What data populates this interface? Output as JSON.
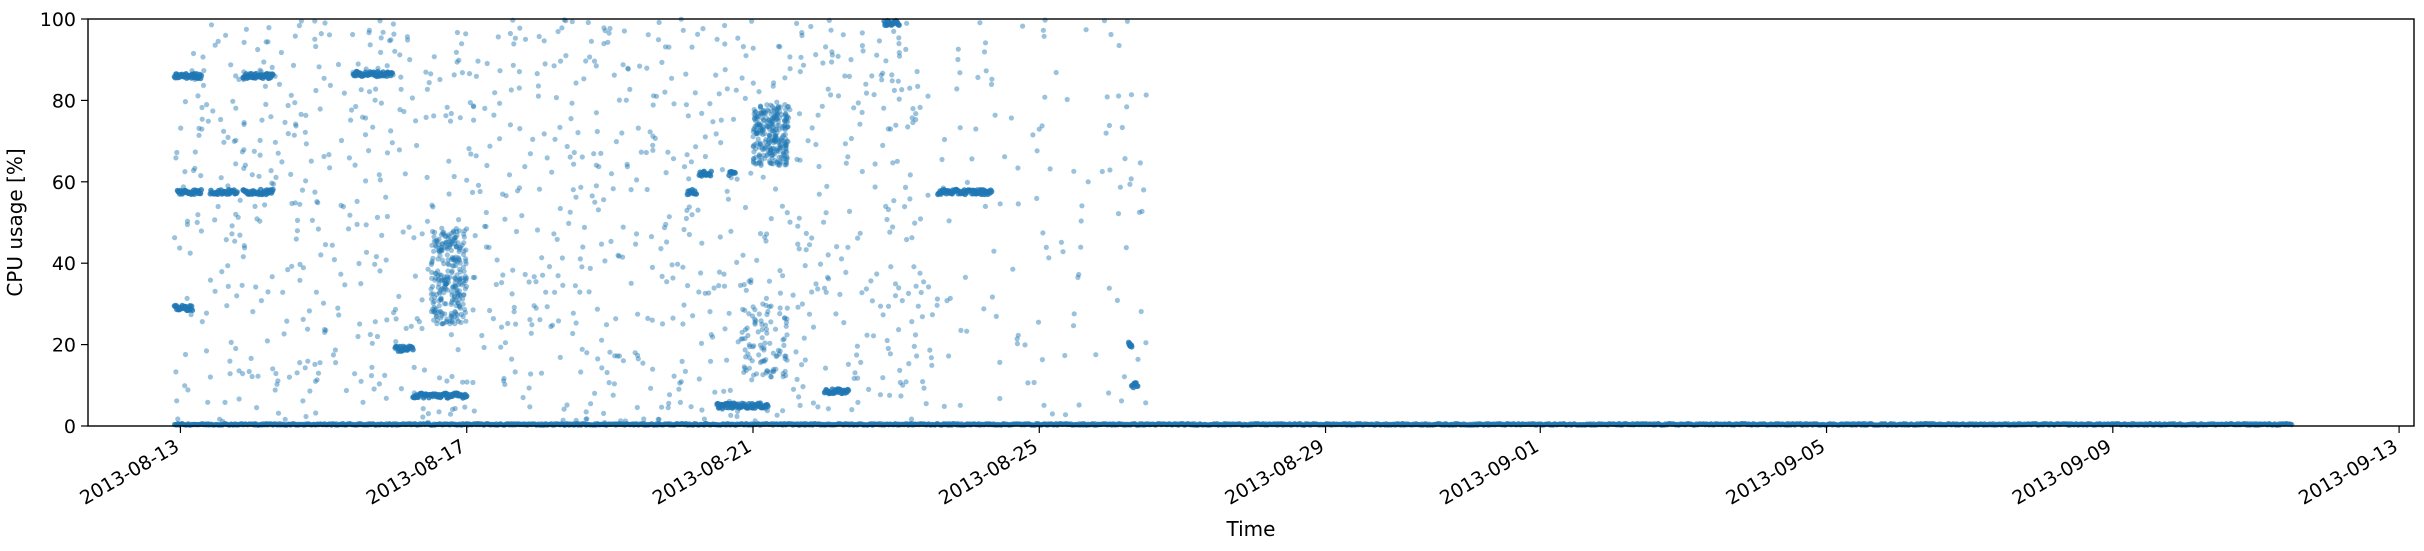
{
  "chart_data": {
    "type": "scatter",
    "title": "",
    "xlabel": "Time",
    "ylabel": "CPU usage [%]",
    "xlim": [
      "2013-08-11T17:00",
      "2013-09-13T05:00"
    ],
    "ylim": [
      0,
      100
    ],
    "y_ticks": [
      0,
      20,
      40,
      60,
      80,
      100
    ],
    "x_ticks": [
      "2013-08-13",
      "2013-08-17",
      "2013-08-21",
      "2013-08-25",
      "2013-08-29",
      "2013-09-01",
      "2013-09-05",
      "2013-09-09",
      "2013-09-13"
    ],
    "grid": false,
    "legend": "none",
    "marker_color": "#1f77b4",
    "marker_alpha": 0.45,
    "series": [
      {
        "clusters": [
          {
            "x_start": "2013-08-12T22:00",
            "x_end": "2013-08-13T07:00",
            "y": 86.0
          },
          {
            "x_start": "2013-08-13T21:00",
            "x_end": "2013-08-14T07:00",
            "y": 86.0
          },
          {
            "x_start": "2013-08-15T10:00",
            "x_end": "2013-08-15T23:00",
            "y": 86.5
          },
          {
            "x_start": "2013-08-12T23:00",
            "x_end": "2013-08-13T07:00",
            "y": 57.5
          },
          {
            "x_start": "2013-08-13T10:00",
            "x_end": "2013-08-13T19:00",
            "y": 57.5
          },
          {
            "x_start": "2013-08-13T21:00",
            "x_end": "2013-08-14T07:00",
            "y": 57.5
          },
          {
            "x_start": "2013-08-12T22:00",
            "x_end": "2013-08-13T04:00",
            "y": 29.0
          },
          {
            "x_start": "2013-08-16T00:00",
            "x_end": "2013-08-16T06:00",
            "y": 19.0
          },
          {
            "x_start": "2013-08-16T06:00",
            "x_end": "2013-08-17T00:00",
            "y": 7.5
          },
          {
            "x_start": "2013-08-20T02:00",
            "x_end": "2013-08-20T05:00",
            "y": 57.5
          },
          {
            "x_start": "2013-08-20T06:00",
            "x_end": "2013-08-20T10:00",
            "y": 62.0
          },
          {
            "x_start": "2013-08-20T16:00",
            "x_end": "2013-08-20T18:00",
            "y": 62.0
          },
          {
            "x_start": "2013-08-20T12:00",
            "x_end": "2013-08-21T05:00",
            "y": 5.0
          },
          {
            "x_start": "2013-08-22T00:00",
            "x_end": "2013-08-22T08:00",
            "y": 8.5
          },
          {
            "x_start": "2013-08-23T14:00",
            "x_end": "2013-08-24T08:00",
            "y": 57.5
          },
          {
            "x_start": "2013-08-22T20:00",
            "x_end": "2013-08-23T01:00",
            "y": 99.0
          },
          {
            "x_start": "2013-08-26T07:00",
            "x_end": "2013-08-26T09:00",
            "y": 10.0
          },
          {
            "x_start": "2013-08-26T06:00",
            "x_end": "2013-08-26T07:00",
            "y": 20.0
          }
        ],
        "spread_regions": [
          {
            "x_start": "2013-08-16T12:00",
            "x_end": "2013-08-17T00:00",
            "y_min": 25,
            "y_max": 48,
            "density": "high"
          },
          {
            "x_start": "2013-08-21T00:00",
            "x_end": "2013-08-21T12:00",
            "y_min": 64,
            "y_max": 79,
            "density": "high"
          },
          {
            "x_start": "2013-08-20T20:00",
            "x_end": "2013-08-21T12:00",
            "y_min": 12,
            "y_max": 30,
            "density": "medium"
          },
          {
            "x_start": "2013-08-12T22:00",
            "x_end": "2013-08-23T12:00",
            "y_min": 0,
            "y_max": 100,
            "density": "sparse"
          },
          {
            "x_start": "2013-08-23T12:00",
            "x_end": "2013-08-26T12:00",
            "y_min": 0,
            "y_max": 100,
            "density": "very-sparse"
          }
        ],
        "baseline": {
          "x_start": "2013-08-12T22:00",
          "x_end": "2013-09-11T12:00",
          "y": 0.2
        }
      }
    ]
  }
}
